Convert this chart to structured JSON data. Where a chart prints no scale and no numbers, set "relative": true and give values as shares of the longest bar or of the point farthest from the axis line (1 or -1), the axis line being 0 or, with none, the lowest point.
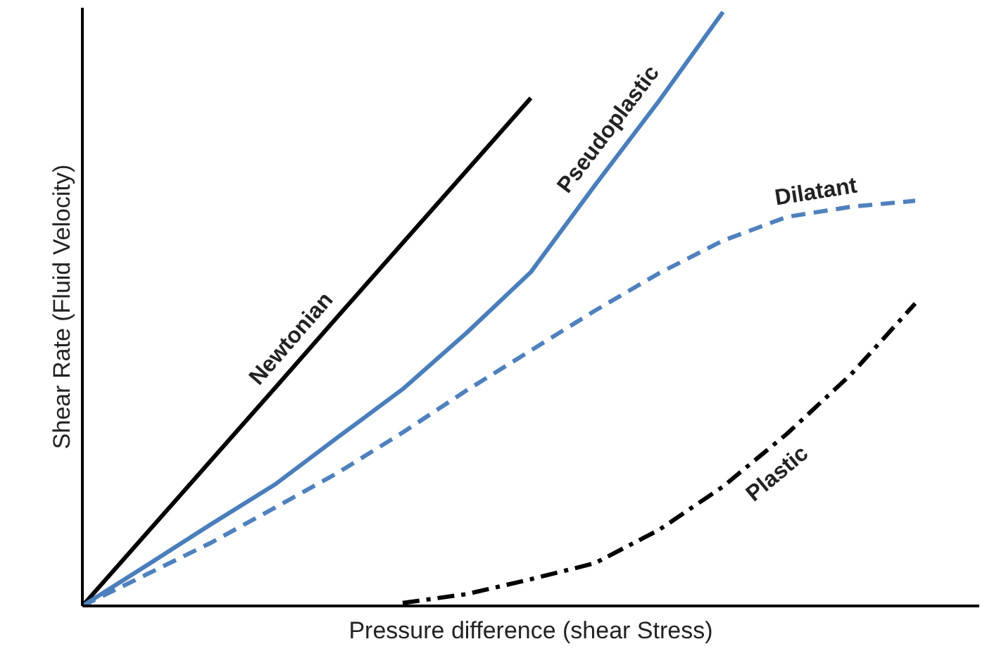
{
  "chart_data": {
    "type": "line",
    "relative": true,
    "xlabel": "Pressure difference (shear Stress)",
    "ylabel": "Shear Rate (Fluid Velocity)",
    "categories": [
      null,
      null,
      null,
      null,
      null,
      null,
      null,
      null,
      null,
      null,
      null,
      null,
      null,
      null,
      null
    ],
    "series": [
      {
        "name": "Newtonian",
        "color": "#000000",
        "line_style": "solid",
        "values": [
          0,
          0.122,
          0.244,
          0.366,
          0.489,
          0.611,
          0.733,
          0.855,
          null,
          null,
          null,
          null,
          null,
          null,
          null
        ]
      },
      {
        "name": "Pseudoplastic",
        "color": "#4a7ebb",
        "line_style": "solid",
        "values": [
          0,
          0.068,
          0.137,
          0.204,
          0.285,
          0.365,
          0.46,
          0.562,
          0.708,
          0.85,
          1,
          null,
          null,
          null,
          null
        ]
      },
      {
        "name": "Dilatant",
        "color": "#4f81bd",
        "line_style": "dashed",
        "values": [
          0,
          0.053,
          0.106,
          0.165,
          0.225,
          0.292,
          0.363,
          0.43,
          0.497,
          0.56,
          0.615,
          0.655,
          0.672,
          0.682,
          null
        ]
      },
      {
        "name": "Plastic",
        "color": "#000000",
        "line_style": "dashdot",
        "values": [
          null,
          null,
          null,
          null,
          null,
          0.005,
          0.02,
          0.045,
          0.072,
          0.128,
          0.201,
          0.29,
          0.39,
          0.509,
          null
        ]
      }
    ]
  }
}
